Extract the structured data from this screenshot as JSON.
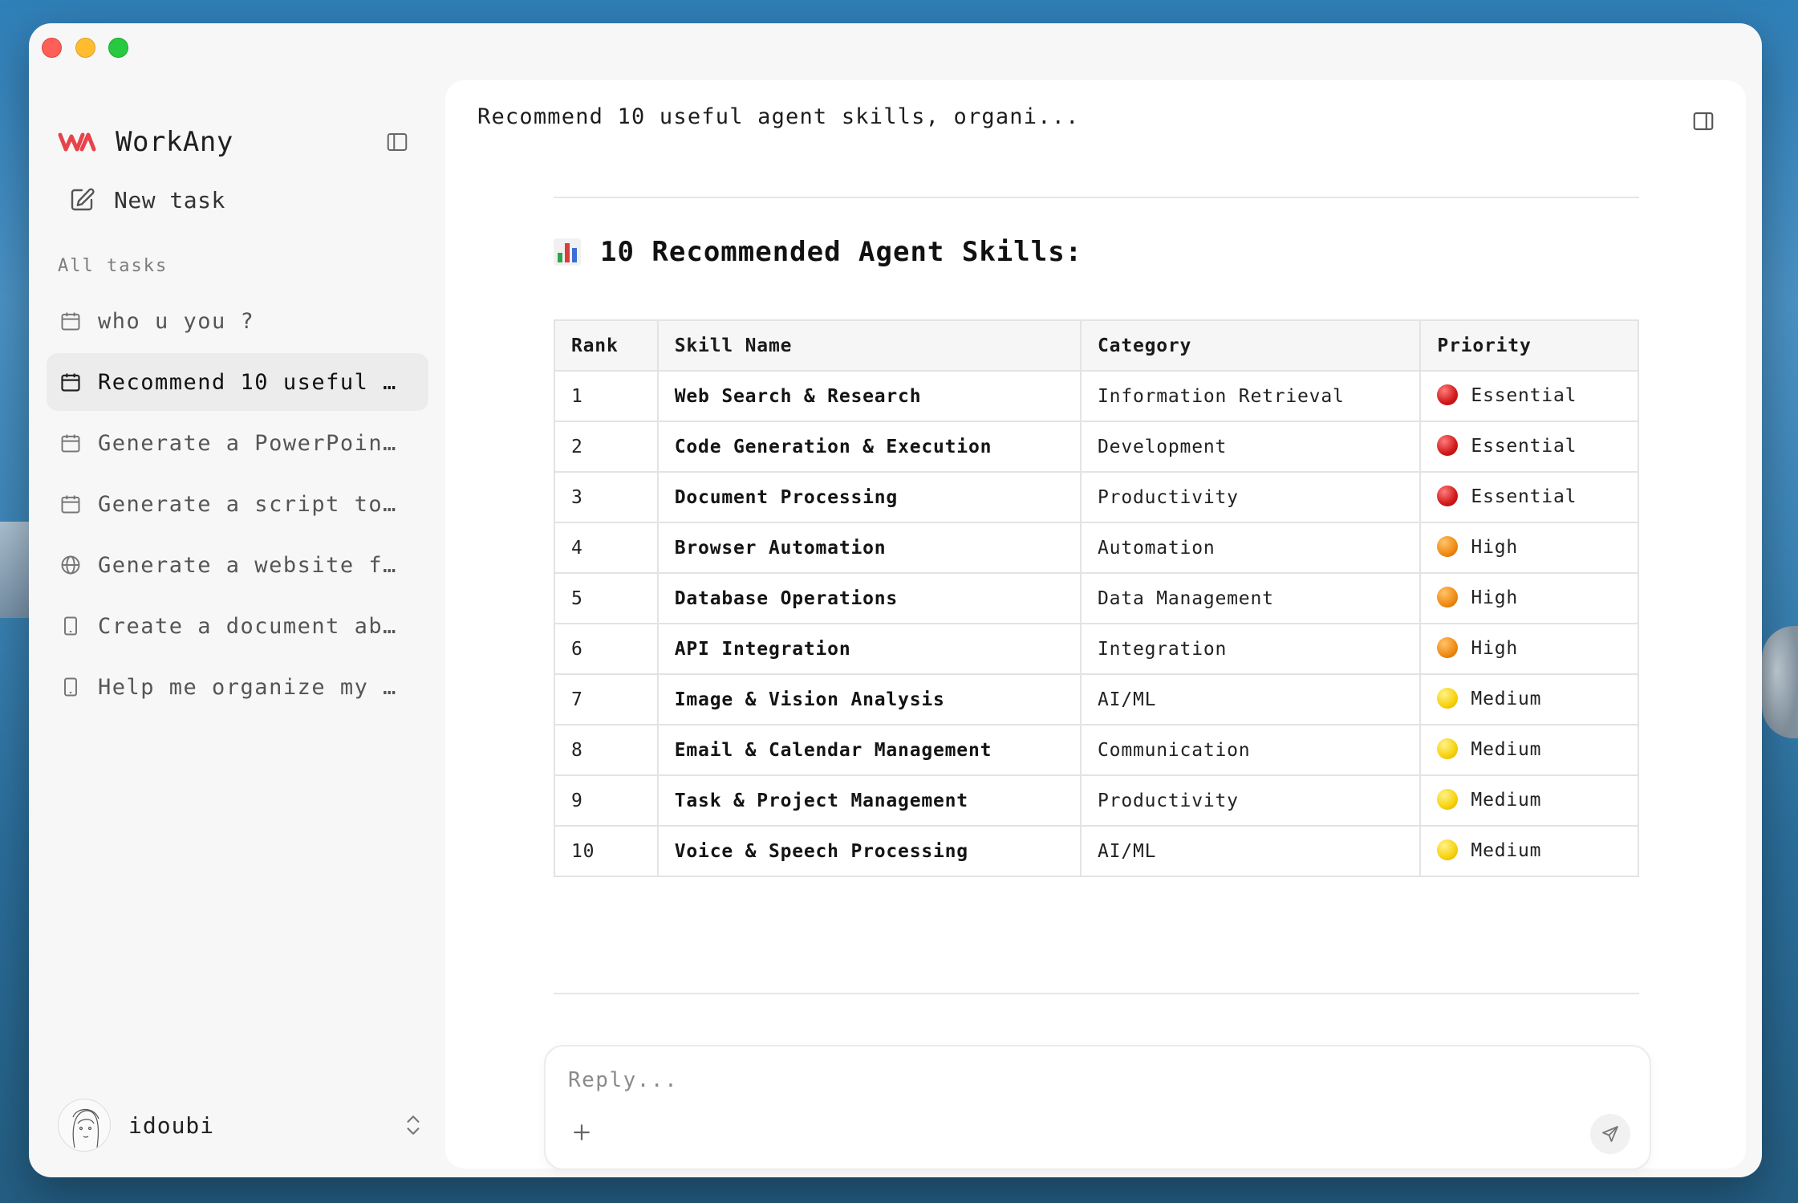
{
  "app": {
    "name": "WorkAny",
    "brand_color": "#e8434a"
  },
  "sidebar": {
    "new_task_label": "New task",
    "section_label": "All tasks",
    "tasks": [
      {
        "label": "who u you ?",
        "icon": "calendar-icon",
        "active": false
      },
      {
        "label": "Recommend 10 useful …",
        "icon": "calendar-icon",
        "active": true
      },
      {
        "label": "Generate a PowerPoin…",
        "icon": "calendar-icon",
        "active": false
      },
      {
        "label": "Generate a script to…",
        "icon": "calendar-icon",
        "active": false
      },
      {
        "label": "Generate a website f…",
        "icon": "globe-icon",
        "active": false
      },
      {
        "label": "Create a document ab…",
        "icon": "phone-icon",
        "active": false
      },
      {
        "label": "Help me organize my …",
        "icon": "phone-icon",
        "active": false
      }
    ],
    "user": {
      "name": "idoubi"
    }
  },
  "main": {
    "title": "Recommend 10 useful agent skills, organi...",
    "heading": "10 Recommended Agent Skills:",
    "heading_icon": "bar-chart-emoji",
    "table": {
      "headers": [
        "Rank",
        "Skill Name",
        "Category",
        "Priority"
      ],
      "rows": [
        {
          "rank": "1",
          "skill": "Web Search & Research",
          "category": "Information Retrieval",
          "priority": "Essential",
          "dot": "red"
        },
        {
          "rank": "2",
          "skill": "Code Generation & Execution",
          "category": "Development",
          "priority": "Essential",
          "dot": "red"
        },
        {
          "rank": "3",
          "skill": "Document Processing",
          "category": "Productivity",
          "priority": "Essential",
          "dot": "red"
        },
        {
          "rank": "4",
          "skill": "Browser Automation",
          "category": "Automation",
          "priority": "High",
          "dot": "orange"
        },
        {
          "rank": "5",
          "skill": "Database Operations",
          "category": "Data Management",
          "priority": "High",
          "dot": "orange"
        },
        {
          "rank": "6",
          "skill": "API Integration",
          "category": "Integration",
          "priority": "High",
          "dot": "orange"
        },
        {
          "rank": "7",
          "skill": "Image & Vision Analysis",
          "category": "AI/ML",
          "priority": "Medium",
          "dot": "yellow"
        },
        {
          "rank": "8",
          "skill": "Email & Calendar Management",
          "category": "Communication",
          "priority": "Medium",
          "dot": "yellow"
        },
        {
          "rank": "9",
          "skill": "Task & Project Management",
          "category": "Productivity",
          "priority": "Medium",
          "dot": "yellow"
        },
        {
          "rank": "10",
          "skill": "Voice & Speech Processing",
          "category": "AI/ML",
          "priority": "Medium",
          "dot": "yellow"
        }
      ]
    },
    "composer": {
      "placeholder": "Reply...",
      "value": ""
    }
  }
}
